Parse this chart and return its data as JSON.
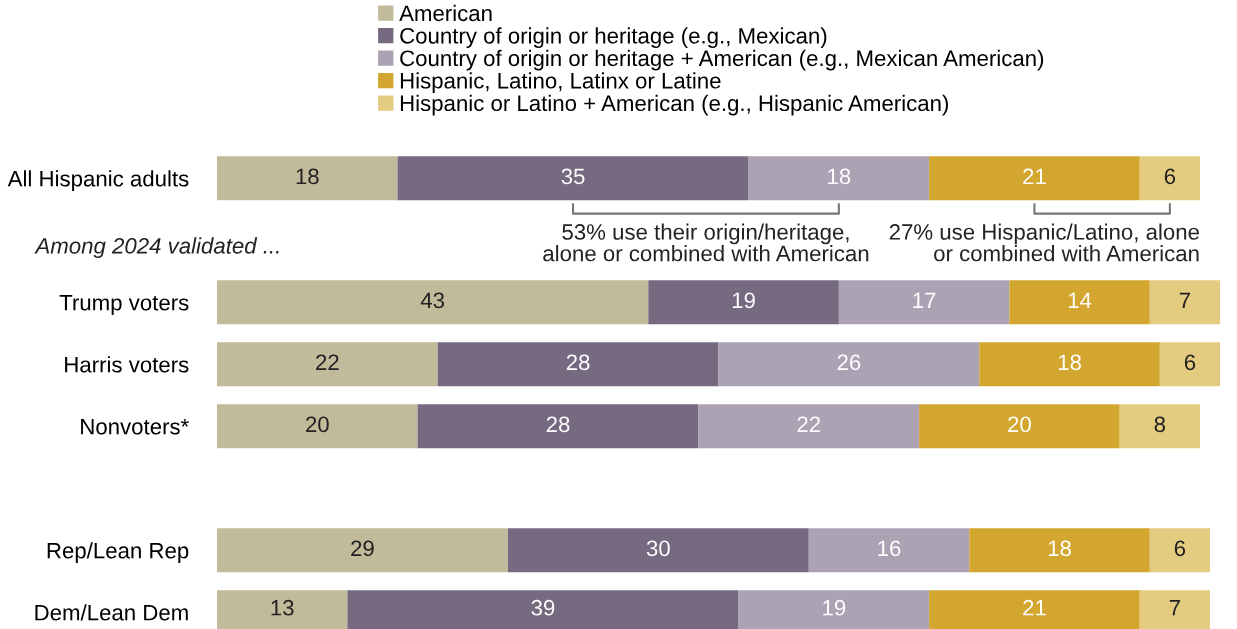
{
  "chart_data": {
    "type": "bar",
    "orientation": "horizontal",
    "stacked": true,
    "data_labels": true,
    "legend": "top",
    "grid": false,
    "categories": [
      "All Hispanic adults",
      null,
      "Trump voters",
      "Harris voters",
      "Nonvoters*",
      null,
      "Rep/Lean Rep",
      "Dem/Lean Dem"
    ],
    "series": [
      {
        "name": "American",
        "color": "#c2bb9b",
        "values": [
          18,
          null,
          43,
          22,
          20,
          null,
          29,
          13
        ]
      },
      {
        "name": "Country of origin or heritage (e.g., Mexican)",
        "color": "#766a80",
        "values": [
          35,
          null,
          19,
          28,
          28,
          null,
          30,
          39
        ]
      },
      {
        "name": "Country of origin or heritage + American (e.g., Mexican American)",
        "color": "#aba2b3",
        "values": [
          18,
          null,
          17,
          26,
          22,
          null,
          16,
          19
        ]
      },
      {
        "name": "Hispanic, Latino, Latinx or Latine",
        "color": "#d2a62f",
        "values": [
          21,
          null,
          14,
          18,
          20,
          null,
          18,
          21
        ]
      },
      {
        "name": "Hispanic or Latino + American (e.g., Hispanic American)",
        "color": "#e3cb80",
        "values": [
          6,
          null,
          7,
          6,
          8,
          null,
          6,
          7
        ]
      }
    ],
    "annotations": [
      "Among 2024 validated ...",
      "53% use their origin/heritage,\nalone or combined with American",
      "27% use Hispanic/Latino, alone\nor combined with American"
    ]
  }
}
